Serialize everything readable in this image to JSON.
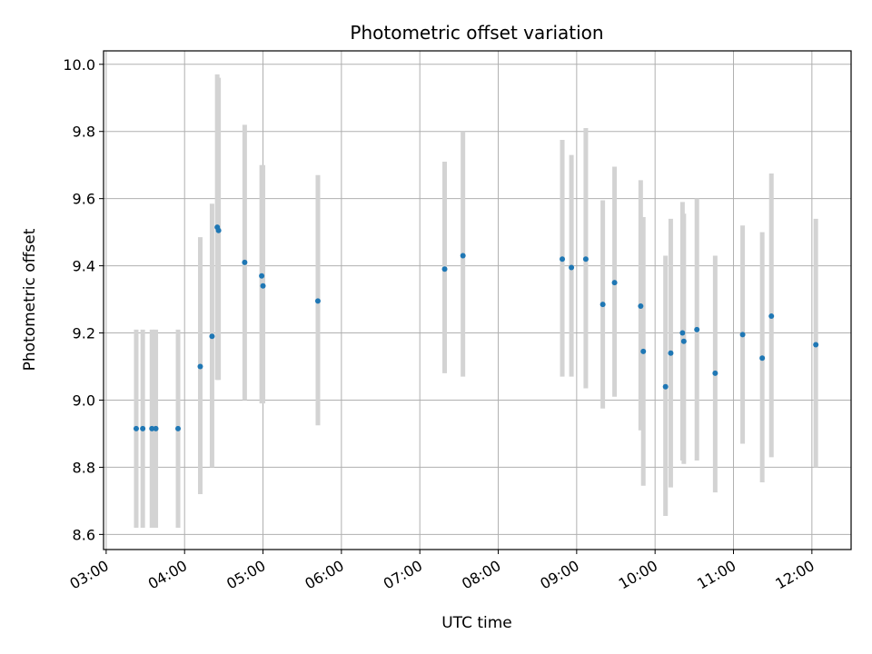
{
  "chart_data": {
    "type": "scatter",
    "title": "Photometric offset variation",
    "xlabel": "UTC time",
    "ylabel": "Photometric offset",
    "x_ticks": [
      "03:00",
      "04:00",
      "05:00",
      "06:00",
      "07:00",
      "08:00",
      "09:00",
      "10:00",
      "11:00",
      "12:00"
    ],
    "y_ticks": [
      "8.6",
      "8.8",
      "9.0",
      "9.2",
      "9.4",
      "9.6",
      "9.8",
      "10.0"
    ],
    "xlim": [
      "02:58",
      "12:30"
    ],
    "ylim": [
      8.555,
      10.04
    ],
    "grid": true,
    "colors": {
      "point": "#1f77b4",
      "errorbar": "#d3d3d3",
      "grid": "#b0b0b0"
    },
    "points": [
      {
        "x": "03:23",
        "y": 8.915,
        "err_low": 8.62,
        "err_high": 9.21
      },
      {
        "x": "03:28",
        "y": 8.915,
        "err_low": 8.62,
        "err_high": 9.21
      },
      {
        "x": "03:35",
        "y": 8.915,
        "err_low": 8.62,
        "err_high": 9.21
      },
      {
        "x": "03:38",
        "y": 8.915,
        "err_low": 8.62,
        "err_high": 9.21
      },
      {
        "x": "03:55",
        "y": 8.915,
        "err_low": 8.62,
        "err_high": 9.21
      },
      {
        "x": "04:12",
        "y": 9.1,
        "err_low": 8.72,
        "err_high": 9.485
      },
      {
        "x": "04:21",
        "y": 9.19,
        "err_low": 8.8,
        "err_high": 9.585
      },
      {
        "x": "04:25",
        "y": 9.515,
        "err_low": 9.06,
        "err_high": 9.97
      },
      {
        "x": "04:26",
        "y": 9.505,
        "err_low": 9.06,
        "err_high": 9.96
      },
      {
        "x": "04:46",
        "y": 9.41,
        "err_low": 9.0,
        "err_high": 9.82
      },
      {
        "x": "04:59",
        "y": 9.37,
        "err_low": 8.99,
        "err_high": 9.7
      },
      {
        "x": "05:00",
        "y": 9.34,
        "err_low": 8.99,
        "err_high": 9.7
      },
      {
        "x": "05:42",
        "y": 9.295,
        "err_low": 8.925,
        "err_high": 9.67
      },
      {
        "x": "07:19",
        "y": 9.39,
        "err_low": 9.08,
        "err_high": 9.71
      },
      {
        "x": "07:33",
        "y": 9.43,
        "err_low": 9.07,
        "err_high": 9.8
      },
      {
        "x": "08:49",
        "y": 9.42,
        "err_low": 9.07,
        "err_high": 9.775
      },
      {
        "x": "08:56",
        "y": 9.395,
        "err_low": 9.07,
        "err_high": 9.73
      },
      {
        "x": "09:07",
        "y": 9.42,
        "err_low": 9.035,
        "err_high": 9.81
      },
      {
        "x": "09:20",
        "y": 9.285,
        "err_low": 8.975,
        "err_high": 9.595
      },
      {
        "x": "09:29",
        "y": 9.35,
        "err_low": 9.01,
        "err_high": 9.695
      },
      {
        "x": "09:49",
        "y": 9.28,
        "err_low": 8.91,
        "err_high": 9.655
      },
      {
        "x": "09:51",
        "y": 9.145,
        "err_low": 8.745,
        "err_high": 9.545
      },
      {
        "x": "10:08",
        "y": 9.04,
        "err_low": 8.655,
        "err_high": 9.43
      },
      {
        "x": "10:12",
        "y": 9.14,
        "err_low": 8.74,
        "err_high": 9.54
      },
      {
        "x": "10:21",
        "y": 9.2,
        "err_low": 8.82,
        "err_high": 9.59
      },
      {
        "x": "10:22",
        "y": 9.175,
        "err_low": 8.81,
        "err_high": 9.555
      },
      {
        "x": "10:32",
        "y": 9.21,
        "err_low": 8.82,
        "err_high": 9.6
      },
      {
        "x": "10:46",
        "y": 9.08,
        "err_low": 8.725,
        "err_high": 9.43
      },
      {
        "x": "11:07",
        "y": 9.195,
        "err_low": 8.87,
        "err_high": 9.52
      },
      {
        "x": "11:22",
        "y": 9.125,
        "err_low": 8.755,
        "err_high": 9.5
      },
      {
        "x": "11:29",
        "y": 9.25,
        "err_low": 8.83,
        "err_high": 9.675
      },
      {
        "x": "12:03",
        "y": 9.165,
        "err_low": 8.8,
        "err_high": 9.54
      }
    ]
  }
}
